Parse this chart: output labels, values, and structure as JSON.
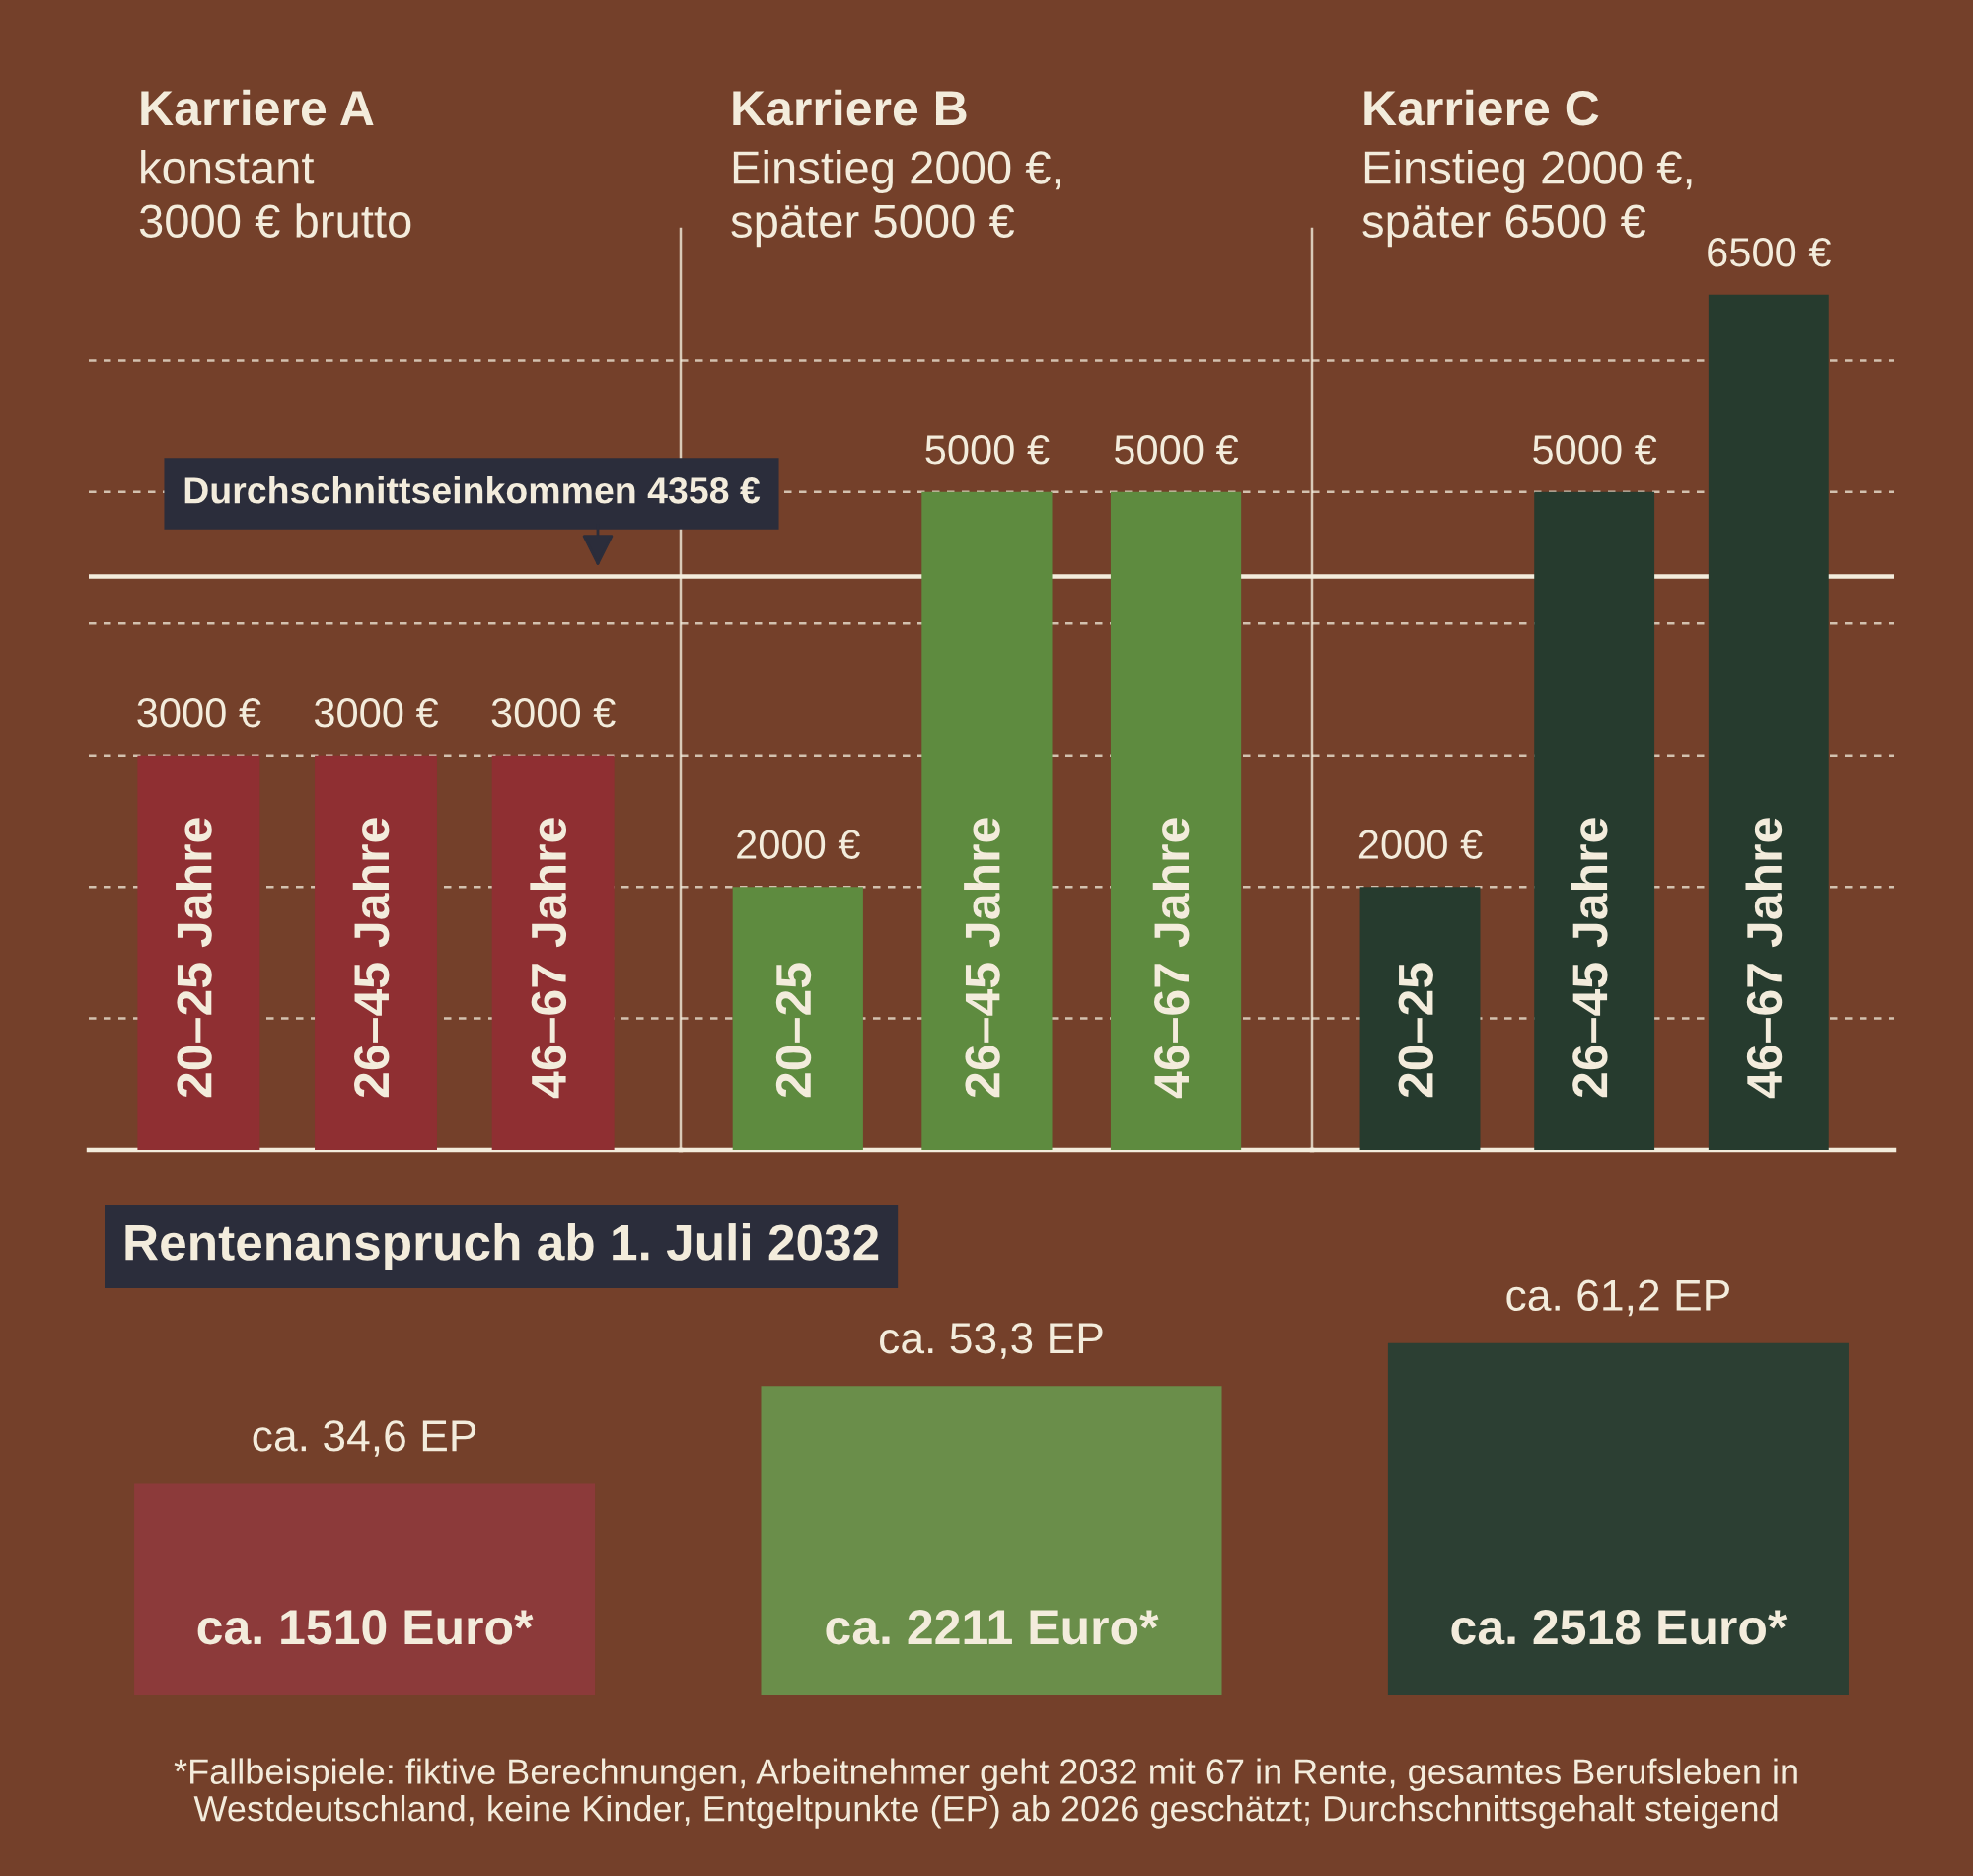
{
  "chart_data": [
    {
      "type": "bar",
      "title": "Karriere A",
      "subtitle": "konstant\n3000 € brutto",
      "categories": [
        "20–25 Jahre",
        "26–45 Jahre",
        "46–67 Jahre"
      ],
      "values": [
        3000,
        3000,
        3000
      ],
      "value_labels": [
        "3000 €",
        "3000 €",
        "3000 €"
      ],
      "color": "#8f2f32",
      "ylim": [
        0,
        7000
      ],
      "yticks": [
        {
          "value": 1000,
          "label": null
        },
        {
          "value": 2000,
          "label": null
        },
        {
          "value": 3000,
          "label": null
        },
        {
          "value": 4000,
          "label": null
        },
        {
          "value": 5000,
          "label": null
        },
        {
          "value": 6000,
          "label": null
        }
      ],
      "grid": "y",
      "tick_labels": "x",
      "ref_lines": [
        {
          "axis": "y",
          "value": 4358,
          "label": "Durchschnittseinkommen 4358 €",
          "color": "#f3ecdc"
        }
      ]
    },
    {
      "type": "bar",
      "title": "Karriere B",
      "subtitle": "Einstieg 2000 €,\nspäter 5000 €",
      "categories": [
        "20–25",
        "26–45 Jahre",
        "46–67 Jahre"
      ],
      "values": [
        2000,
        5000,
        5000
      ],
      "value_labels": [
        "2000 €",
        "5000 €",
        "5000 €"
      ],
      "color": "#5e8b3f",
      "ylim": [
        0,
        7000
      ],
      "yticks": [
        {
          "value": 1000,
          "label": null
        },
        {
          "value": 2000,
          "label": null
        },
        {
          "value": 3000,
          "label": null
        },
        {
          "value": 4000,
          "label": null
        },
        {
          "value": 5000,
          "label": null
        },
        {
          "value": 6000,
          "label": null
        }
      ],
      "grid": "y",
      "tick_labels": "x",
      "ref_lines": [
        {
          "axis": "y",
          "value": 4358,
          "color": "#f3ecdc"
        }
      ]
    },
    {
      "type": "bar",
      "title": "Karriere C",
      "subtitle": "Einstieg 2000 €,\nspäter 6500 €",
      "categories": [
        "20–25",
        "26–45 Jahre",
        "46–67 Jahre"
      ],
      "values": [
        2000,
        5000,
        6500
      ],
      "value_labels": [
        "2000 €",
        "5000 €",
        "6500 €"
      ],
      "color": "#263b2e",
      "ylim": [
        0,
        7000
      ],
      "yticks": [
        {
          "value": 1000,
          "label": null
        },
        {
          "value": 2000,
          "label": null
        },
        {
          "value": 3000,
          "label": null
        },
        {
          "value": 4000,
          "label": null
        },
        {
          "value": 5000,
          "label": null
        },
        {
          "value": 6000,
          "label": null
        }
      ],
      "grid": "y",
      "tick_labels": "x",
      "ref_lines": [
        {
          "axis": "y",
          "value": 4358,
          "color": "#f3ecdc"
        }
      ]
    },
    {
      "type": "bar",
      "title": "Rentenanspruch ab 1. Juli 2032",
      "categories": [
        null,
        null,
        null
      ],
      "values": [
        1510,
        2211,
        2518
      ],
      "value_labels": [
        "ca. 1510 Euro*",
        "ca. 2211 Euro*",
        "ca. 2518 Euro*"
      ],
      "colors": [
        "#8c3a3a",
        "#6a8e4a",
        "#2c3f33"
      ],
      "tick_labels": false,
      "annotations": [
        {
          "text": "ca. 34,6 EP",
          "y": 1510
        },
        {
          "text": "ca. 53,3 EP",
          "y": 2211
        },
        {
          "text": "ca. 61,2 EP",
          "y": 2518
        },
        "*Fallbeispiele: fiktive Berechnungen, Arbeitnehmer geht 2032 mit 67 in Rente, gesamtes Berufsleben in\nWestdeutschland, keine Kinder, Entgeltpunkte (EP) ab 2026 geschätzt; Durchschnittsgehalt steigend"
      ]
    }
  ]
}
